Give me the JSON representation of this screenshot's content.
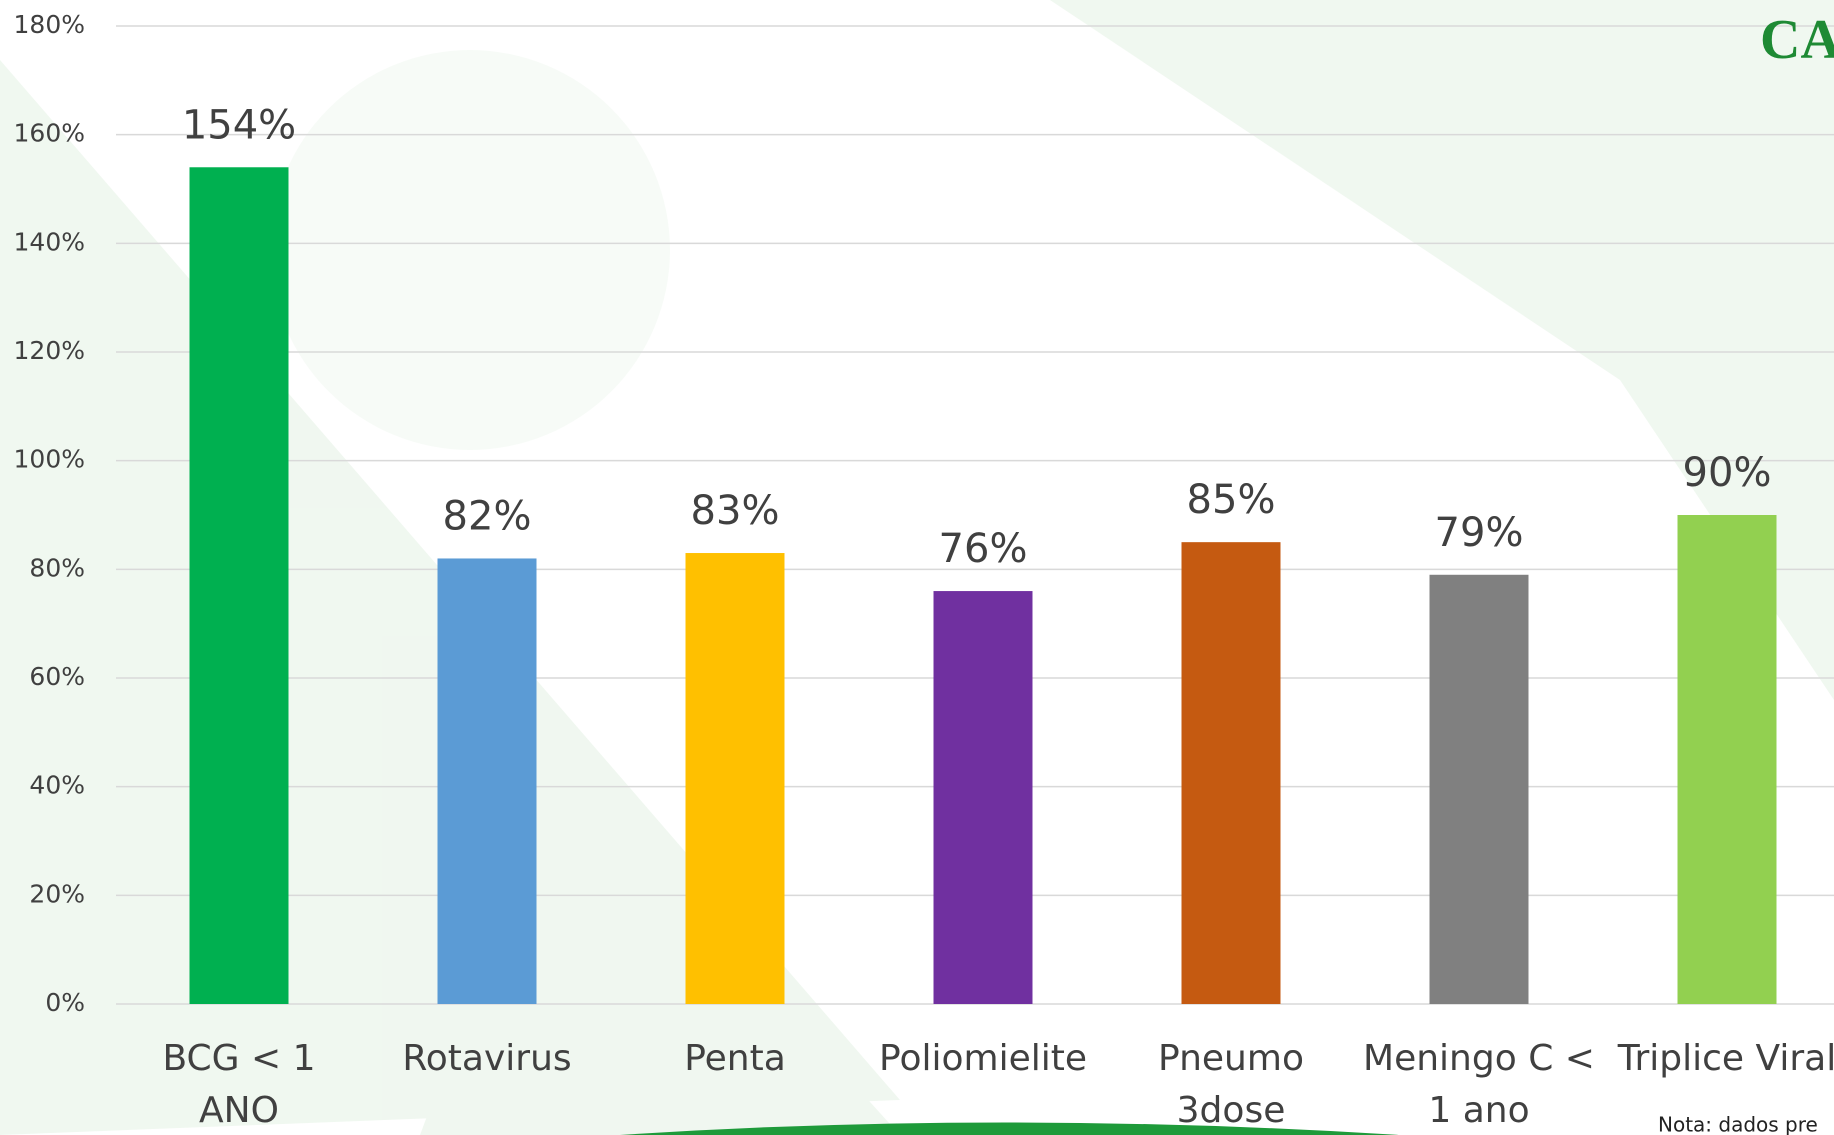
{
  "chart_data": {
    "type": "bar",
    "categories": [
      "BCG < 1 ANO",
      "Rotavirus",
      "Penta",
      "Poliomielite",
      "Pneumo 3dose",
      "Meningo C < 1 ano",
      "Triplice Viral"
    ],
    "values": [
      154,
      82,
      83,
      76,
      85,
      79,
      90
    ],
    "value_labels": [
      "154%",
      "82%",
      "83%",
      "76%",
      "85%",
      "79%",
      "90%"
    ],
    "colors": [
      "#00b050",
      "#5b9bd5",
      "#ffc000",
      "#7030a0",
      "#c55a11",
      "#808080",
      "#92d050"
    ],
    "ylim": [
      0,
      180
    ],
    "yticks": [
      {
        "value": 0,
        "label": "0%"
      },
      {
        "value": 20,
        "label": "20%"
      },
      {
        "value": 40,
        "label": "40%"
      },
      {
        "value": 60,
        "label": "60%"
      },
      {
        "value": 80,
        "label": "80%"
      },
      {
        "value": 100,
        "label": "100%"
      },
      {
        "value": 120,
        "label": "120%"
      },
      {
        "value": 140,
        "label": "140%"
      },
      {
        "value": 160,
        "label": "160%"
      },
      {
        "value": 180,
        "label": "180%"
      }
    ],
    "grid": true,
    "logo_text": "CA",
    "note": "Nota: dados pre"
  }
}
